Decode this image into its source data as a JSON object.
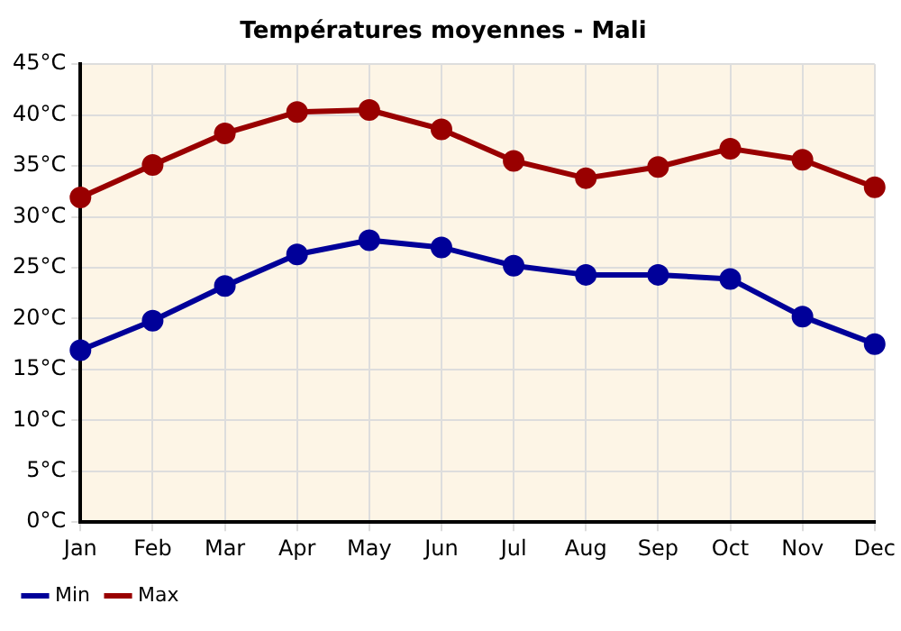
{
  "chart_data": {
    "type": "line",
    "title": "Températures moyennes - Mali",
    "categories": [
      "Jan",
      "Feb",
      "Mar",
      "Apr",
      "May",
      "Jun",
      "Jul",
      "Aug",
      "Sep",
      "Oct",
      "Nov",
      "Dec"
    ],
    "series": [
      {
        "name": "Min",
        "color": "#000099",
        "values": [
          16.9,
          19.8,
          23.2,
          26.3,
          27.7,
          27.0,
          25.2,
          24.3,
          24.3,
          23.9,
          20.2,
          17.5
        ]
      },
      {
        "name": "Max",
        "color": "#990000",
        "values": [
          31.9,
          35.1,
          38.2,
          40.3,
          40.5,
          38.6,
          35.5,
          33.8,
          34.9,
          36.7,
          35.6,
          32.9
        ]
      }
    ],
    "ylim": [
      0,
      45
    ],
    "yticks": [
      {
        "value": 0,
        "label": "0°C"
      },
      {
        "value": 5,
        "label": "5°C"
      },
      {
        "value": 10,
        "label": "10°C"
      },
      {
        "value": 15,
        "label": "15°C"
      },
      {
        "value": 20,
        "label": "20°C"
      },
      {
        "value": 25,
        "label": "25°C"
      },
      {
        "value": 30,
        "label": "30°C"
      },
      {
        "value": 35,
        "label": "35°C"
      },
      {
        "value": 40,
        "label": "40°C"
      },
      {
        "value": 45,
        "label": "45°C"
      }
    ],
    "grid": true,
    "legend": "bottom left",
    "marker": "circle",
    "line_style": "solid"
  }
}
